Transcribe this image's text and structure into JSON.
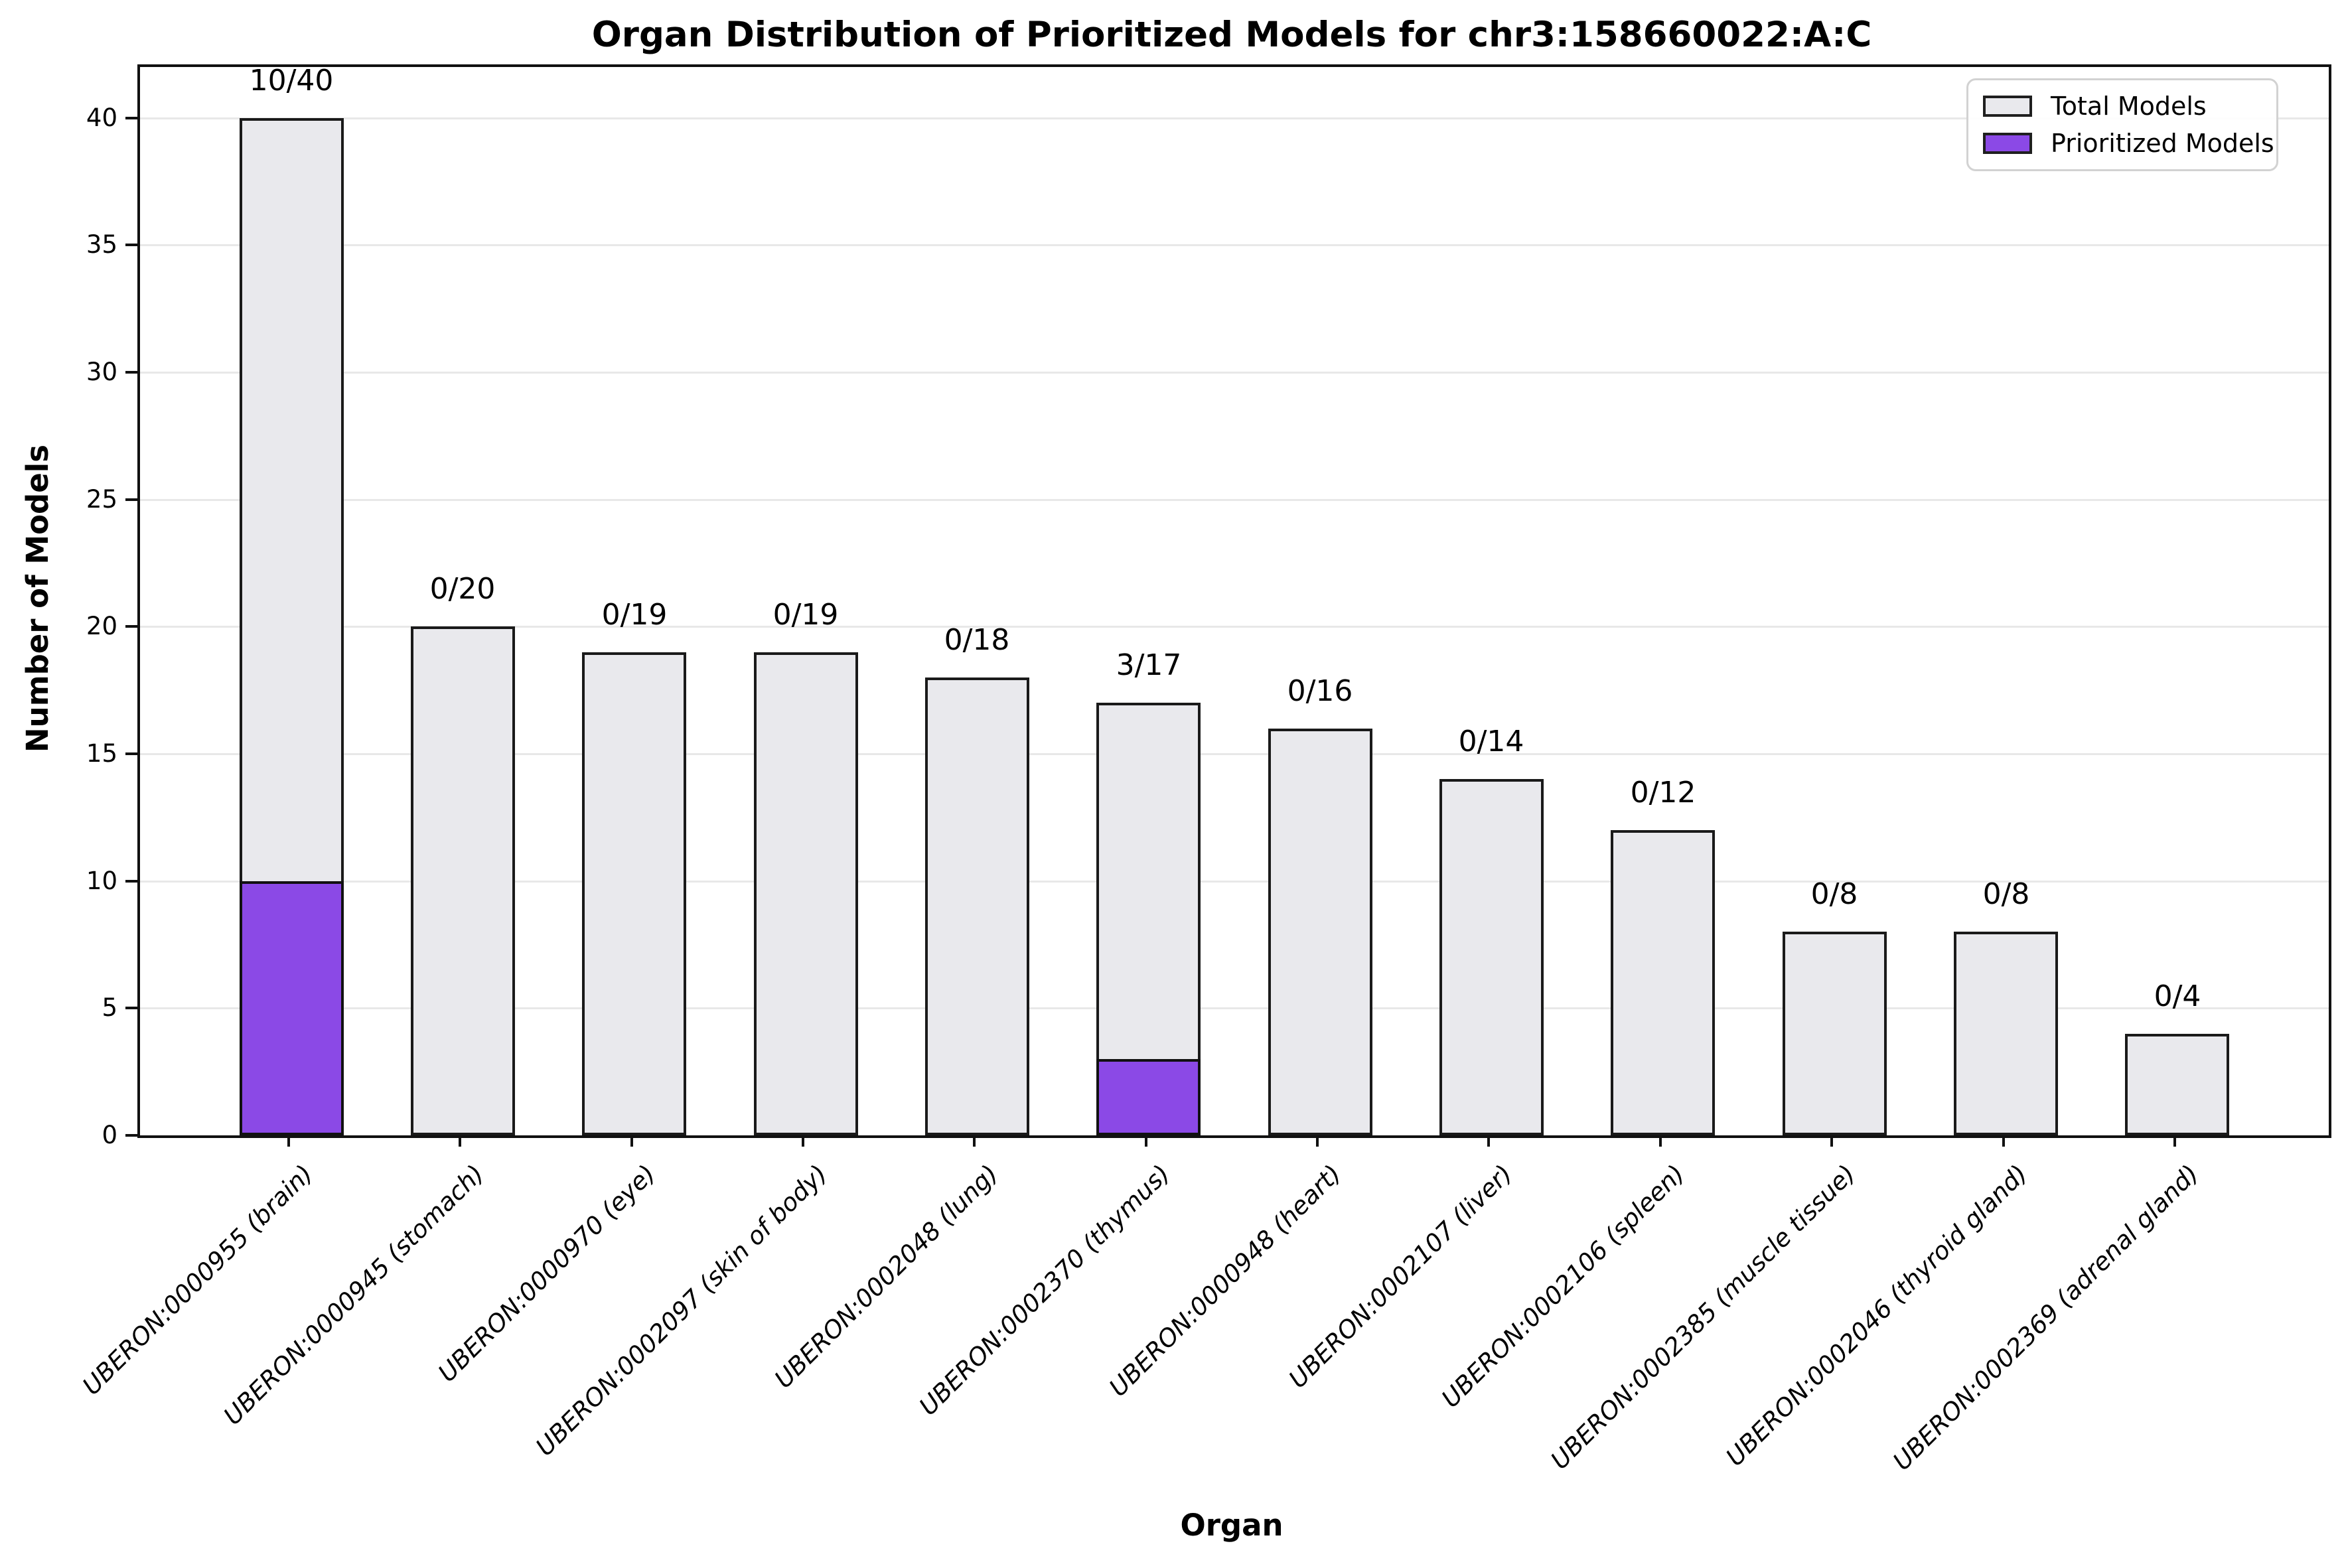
{
  "chart_data": {
    "type": "bar",
    "title": "Organ Distribution of Prioritized Models for chr3:158660022:A:C",
    "xlabel": "Organ",
    "ylabel": "Number of Models",
    "ylim": [
      0,
      42
    ],
    "yticks": [
      0,
      5,
      10,
      15,
      20,
      25,
      30,
      35,
      40
    ],
    "grid": true,
    "categories": [
      "UBERON:0000955 (brain)",
      "UBERON:0000945 (stomach)",
      "UBERON:0000970 (eye)",
      "UBERON:0002097 (skin of body)",
      "UBERON:0002048 (lung)",
      "UBERON:0002370 (thymus)",
      "UBERON:0000948 (heart)",
      "UBERON:0002107 (liver)",
      "UBERON:0002106 (spleen)",
      "UBERON:0002385 (muscle tissue)",
      "UBERON:0002046 (thyroid gland)",
      "UBERON:0002369 (adrenal gland)"
    ],
    "series": [
      {
        "name": "Total Models",
        "color": "#E9E9ED",
        "values": [
          40,
          20,
          19,
          19,
          18,
          17,
          16,
          14,
          12,
          8,
          8,
          4
        ]
      },
      {
        "name": "Prioritized Models",
        "color": "#8B49E6",
        "values": [
          10,
          0,
          0,
          0,
          0,
          3,
          0,
          0,
          0,
          0,
          0,
          0
        ]
      }
    ],
    "bar_labels": [
      "10/40",
      "0/20",
      "0/19",
      "0/19",
      "0/18",
      "3/17",
      "0/16",
      "0/14",
      "0/12",
      "0/8",
      "0/8",
      "0/4"
    ],
    "legend": {
      "position": "upper right",
      "entries": [
        {
          "label": "Total Models",
          "color": "#E9E9ED"
        },
        {
          "label": "Prioritized Models",
          "color": "#8B49E6"
        }
      ]
    },
    "colors": {
      "bar_edge": "#1a1a1a",
      "grid": "#e8e8e8",
      "spine": "#111111"
    }
  }
}
